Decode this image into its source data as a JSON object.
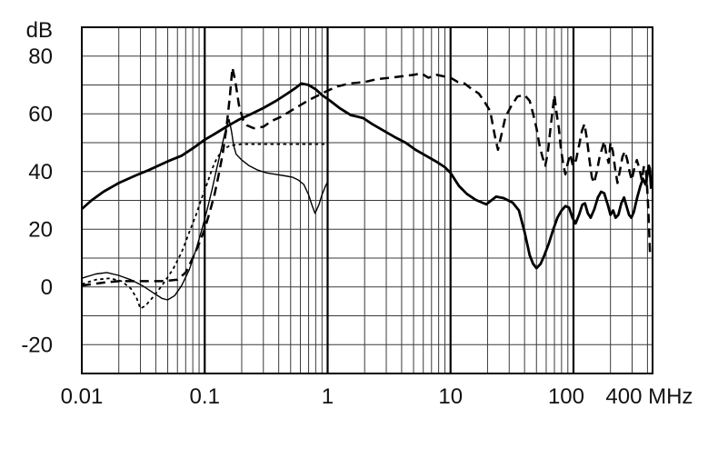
{
  "chart_data": {
    "type": "line",
    "title": "",
    "grid": true,
    "legend": "none",
    "x_axis": {
      "unit": "MHz",
      "scale": "log",
      "min": 0.01,
      "max": 440,
      "tick_values": [
        0.01,
        0.1,
        1,
        10,
        100,
        400
      ],
      "tick_labels": [
        "0.01",
        "0.1",
        "1",
        "10",
        "100",
        "400"
      ]
    },
    "y_axis": {
      "unit": "dB",
      "scale": "linear",
      "min": -30,
      "max": 90,
      "grid_step": 10,
      "tick_values": [
        80,
        60,
        40,
        20,
        0,
        -20
      ],
      "tick_labels": [
        "80",
        "60",
        "40",
        "20",
        "0",
        "-20"
      ]
    },
    "colors": {
      "curve": "#000000",
      "grid_minor": "#3a3a3a",
      "grid_major": "#000000",
      "frame": "#000000"
    },
    "series": [
      {
        "name": "thin-solid-curve",
        "line_style": "thin-solid",
        "points": [
          [
            0.01,
            3
          ],
          [
            0.013,
            4.5
          ],
          [
            0.016,
            5
          ],
          [
            0.02,
            4
          ],
          [
            0.025,
            2.5
          ],
          [
            0.031,
            0.5
          ],
          [
            0.038,
            -2
          ],
          [
            0.045,
            -4
          ],
          [
            0.05,
            -4.5
          ],
          [
            0.057,
            -3
          ],
          [
            0.065,
            0.5
          ],
          [
            0.075,
            6
          ],
          [
            0.085,
            13
          ],
          [
            0.095,
            20
          ],
          [
            0.105,
            27
          ],
          [
            0.115,
            34
          ],
          [
            0.125,
            41
          ],
          [
            0.135,
            47
          ],
          [
            0.145,
            53
          ],
          [
            0.152,
            56
          ],
          [
            0.158,
            58
          ],
          [
            0.165,
            54
          ],
          [
            0.172,
            49
          ],
          [
            0.18,
            46
          ],
          [
            0.2,
            44
          ],
          [
            0.23,
            42
          ],
          [
            0.27,
            40.5
          ],
          [
            0.32,
            39.5
          ],
          [
            0.38,
            39
          ],
          [
            0.45,
            38.5
          ],
          [
            0.52,
            38
          ],
          [
            0.58,
            37
          ],
          [
            0.64,
            35.5
          ],
          [
            0.7,
            32
          ],
          [
            0.75,
            28
          ],
          [
            0.79,
            25.5
          ],
          [
            0.85,
            28.5
          ],
          [
            0.9,
            32
          ],
          [
            0.95,
            34.5
          ],
          [
            1,
            36.5
          ]
        ]
      },
      {
        "name": "short-dash-curve",
        "line_style": "short-dash",
        "points": [
          [
            0.01,
            1
          ],
          [
            0.013,
            2.5
          ],
          [
            0.017,
            3
          ],
          [
            0.021,
            2
          ],
          [
            0.025,
            -0.5
          ],
          [
            0.028,
            -4
          ],
          [
            0.03,
            -7.5
          ],
          [
            0.033,
            -6.5
          ],
          [
            0.038,
            -3.5
          ],
          [
            0.045,
            0.5
          ],
          [
            0.055,
            6
          ],
          [
            0.065,
            12
          ],
          [
            0.075,
            19
          ],
          [
            0.085,
            25
          ],
          [
            0.095,
            31
          ],
          [
            0.105,
            36
          ],
          [
            0.115,
            41
          ],
          [
            0.125,
            44.5
          ],
          [
            0.14,
            47.5
          ],
          [
            0.16,
            49
          ],
          [
            0.2,
            49.5
          ],
          [
            0.3,
            49.5
          ],
          [
            0.45,
            49.5
          ],
          [
            0.6,
            49.5
          ],
          [
            0.8,
            49.5
          ],
          [
            1,
            49.5
          ]
        ]
      },
      {
        "name": "long-dash-curve",
        "line_style": "long-dash",
        "points": [
          [
            0.01,
            0.5
          ],
          [
            0.015,
            1.5
          ],
          [
            0.02,
            2
          ],
          [
            0.03,
            2
          ],
          [
            0.045,
            2
          ],
          [
            0.06,
            2.5
          ],
          [
            0.07,
            5
          ],
          [
            0.08,
            10
          ],
          [
            0.09,
            15
          ],
          [
            0.1,
            20
          ],
          [
            0.11,
            26
          ],
          [
            0.12,
            32
          ],
          [
            0.13,
            39
          ],
          [
            0.14,
            46
          ],
          [
            0.15,
            55
          ],
          [
            0.16,
            66
          ],
          [
            0.168,
            76
          ],
          [
            0.178,
            71
          ],
          [
            0.19,
            63
          ],
          [
            0.205,
            58
          ],
          [
            0.22,
            56
          ],
          [
            0.25,
            55
          ],
          [
            0.3,
            55.5
          ],
          [
            0.35,
            57.5
          ],
          [
            0.42,
            59
          ],
          [
            0.5,
            61
          ],
          [
            0.6,
            63
          ],
          [
            0.72,
            65
          ],
          [
            0.85,
            66.5
          ],
          [
            1,
            68
          ],
          [
            1.2,
            69.5
          ],
          [
            1.5,
            70.5
          ],
          [
            2,
            71
          ],
          [
            2.5,
            72
          ],
          [
            3.2,
            72.5
          ],
          [
            4,
            73
          ],
          [
            5,
            73.5
          ],
          [
            5.8,
            74
          ],
          [
            6.6,
            72.5
          ],
          [
            7.7,
            73.5
          ],
          [
            8.8,
            73
          ],
          [
            10,
            72.5
          ],
          [
            11.5,
            71
          ],
          [
            13,
            70.5
          ],
          [
            15,
            68.5
          ],
          [
            17,
            67
          ],
          [
            19,
            64
          ],
          [
            21,
            61
          ],
          [
            23,
            52
          ],
          [
            24.3,
            47.5
          ],
          [
            26,
            53
          ],
          [
            28,
            59
          ],
          [
            31,
            62.5
          ],
          [
            35,
            66
          ],
          [
            40,
            66.5
          ],
          [
            44,
            64.5
          ],
          [
            47,
            60
          ],
          [
            50,
            55
          ],
          [
            53,
            49
          ],
          [
            56,
            45
          ],
          [
            59,
            42
          ],
          [
            62,
            47
          ],
          [
            65,
            55
          ],
          [
            68,
            62
          ],
          [
            70,
            66.5
          ],
          [
            73,
            60
          ],
          [
            76,
            55
          ],
          [
            79,
            48
          ],
          [
            83,
            42
          ],
          [
            86,
            39
          ],
          [
            90,
            43
          ],
          [
            94,
            46
          ],
          [
            99,
            42
          ],
          [
            105,
            44
          ],
          [
            111,
            49
          ],
          [
            117,
            54
          ],
          [
            123,
            56.5
          ],
          [
            129,
            51
          ],
          [
            135,
            44
          ],
          [
            141,
            38
          ],
          [
            147,
            36
          ],
          [
            155,
            40
          ],
          [
            163,
            45
          ],
          [
            171,
            48
          ],
          [
            178,
            50.5
          ],
          [
            185,
            46
          ],
          [
            193,
            43
          ],
          [
            200,
            50
          ],
          [
            209,
            47
          ],
          [
            218,
            41
          ],
          [
            228,
            36
          ],
          [
            238,
            40
          ],
          [
            250,
            45
          ],
          [
            262,
            47
          ],
          [
            274,
            44
          ],
          [
            286,
            40
          ],
          [
            298,
            37
          ],
          [
            312,
            41
          ],
          [
            328,
            44
          ],
          [
            344,
            41
          ],
          [
            360,
            37
          ],
          [
            375,
            42
          ],
          [
            388,
            41
          ],
          [
            398,
            34
          ],
          [
            406,
            27
          ],
          [
            413,
            19
          ],
          [
            419,
            12
          ]
        ]
      },
      {
        "name": "thick-solid-curve",
        "line_style": "thick-solid",
        "points": [
          [
            0.01,
            27
          ],
          [
            0.012,
            30
          ],
          [
            0.015,
            33
          ],
          [
            0.02,
            36
          ],
          [
            0.027,
            38.5
          ],
          [
            0.035,
            40.5
          ],
          [
            0.05,
            43.5
          ],
          [
            0.065,
            45.5
          ],
          [
            0.083,
            48.5
          ],
          [
            0.1,
            51
          ],
          [
            0.12,
            53
          ],
          [
            0.15,
            55.5
          ],
          [
            0.19,
            58
          ],
          [
            0.24,
            60
          ],
          [
            0.3,
            62
          ],
          [
            0.38,
            64.5
          ],
          [
            0.47,
            67
          ],
          [
            0.55,
            69
          ],
          [
            0.61,
            70.5
          ],
          [
            0.7,
            70
          ],
          [
            0.8,
            68.5
          ],
          [
            0.9,
            66.5
          ],
          [
            1.05,
            64.5
          ],
          [
            1.25,
            62
          ],
          [
            1.55,
            59.5
          ],
          [
            1.75,
            59
          ],
          [
            1.95,
            58.5
          ],
          [
            2.3,
            56.5
          ],
          [
            2.9,
            54
          ],
          [
            3.5,
            52
          ],
          [
            4.3,
            50
          ],
          [
            5.2,
            47.5
          ],
          [
            6.3,
            45.5
          ],
          [
            7.6,
            43.5
          ],
          [
            9,
            41.5
          ],
          [
            10,
            39.5
          ],
          [
            11.7,
            35
          ],
          [
            13.5,
            32.3
          ],
          [
            16,
            30.2
          ],
          [
            19.5,
            28.6
          ],
          [
            23.5,
            31.3
          ],
          [
            27,
            30.8
          ],
          [
            32,
            29.2
          ],
          [
            36,
            26.5
          ],
          [
            40,
            19
          ],
          [
            44,
            11
          ],
          [
            47,
            8
          ],
          [
            50,
            6.5
          ],
          [
            54,
            8
          ],
          [
            58,
            11
          ],
          [
            63,
            15
          ],
          [
            68,
            19.5
          ],
          [
            74,
            24
          ],
          [
            80,
            26.5
          ],
          [
            86,
            28
          ],
          [
            92,
            27.5
          ],
          [
            98,
            24
          ],
          [
            104,
            22
          ],
          [
            111,
            25
          ],
          [
            118,
            28.5
          ],
          [
            124,
            29
          ],
          [
            131,
            25.5
          ],
          [
            138,
            24
          ],
          [
            148,
            27
          ],
          [
            158,
            31
          ],
          [
            168,
            33
          ],
          [
            178,
            32.5
          ],
          [
            190,
            28.5
          ],
          [
            200,
            25
          ],
          [
            210,
            26.5
          ],
          [
            220,
            24
          ],
          [
            232,
            25
          ],
          [
            245,
            29
          ],
          [
            258,
            31
          ],
          [
            270,
            28
          ],
          [
            283,
            25
          ],
          [
            296,
            24
          ],
          [
            310,
            26
          ],
          [
            330,
            31
          ],
          [
            350,
            35
          ],
          [
            368,
            37.5
          ],
          [
            385,
            35.5
          ],
          [
            400,
            39
          ],
          [
            410,
            42
          ],
          [
            418,
            41
          ],
          [
            428,
            34
          ]
        ]
      }
    ]
  }
}
